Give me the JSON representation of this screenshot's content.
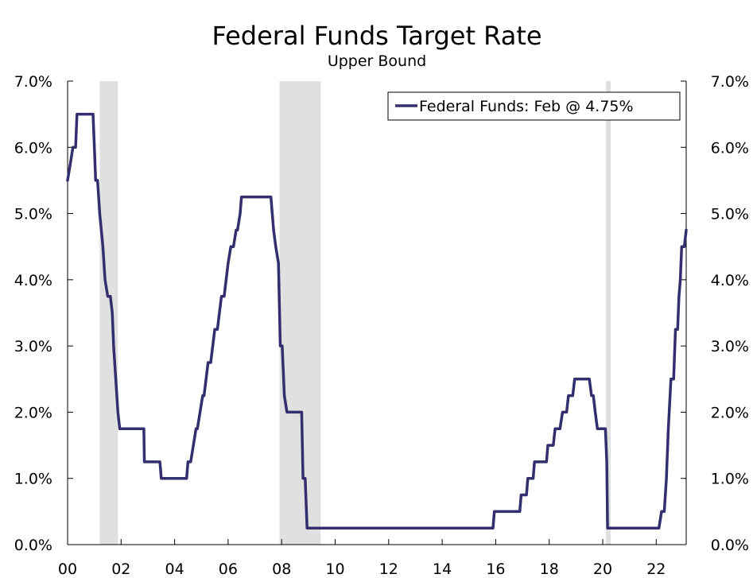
{
  "chart_data": {
    "type": "line",
    "title": "Federal Funds Target Rate",
    "subtitle": "Upper Bound",
    "xlabel": "",
    "ylabel": "",
    "xlim": [
      2000.0,
      2023.12
    ],
    "ylim": [
      0,
      7
    ],
    "y_ticks": [
      {
        "value": 0,
        "label": "0.0%"
      },
      {
        "value": 1,
        "label": "1.0%"
      },
      {
        "value": 2,
        "label": "2.0%"
      },
      {
        "value": 3,
        "label": "3.0%"
      },
      {
        "value": 4,
        "label": "4.0%"
      },
      {
        "value": 5,
        "label": "5.0%"
      },
      {
        "value": 6,
        "label": "6.0%"
      },
      {
        "value": 7,
        "label": "7.0%"
      }
    ],
    "x_ticks": [
      {
        "value": 2000,
        "label": "00"
      },
      {
        "value": 2002,
        "label": "02"
      },
      {
        "value": 2004,
        "label": "04"
      },
      {
        "value": 2006,
        "label": "06"
      },
      {
        "value": 2008,
        "label": "08"
      },
      {
        "value": 2010,
        "label": "10"
      },
      {
        "value": 2012,
        "label": "12"
      },
      {
        "value": 2014,
        "label": "14"
      },
      {
        "value": 2016,
        "label": "16"
      },
      {
        "value": 2018,
        "label": "18"
      },
      {
        "value": 2020,
        "label": "20"
      },
      {
        "value": 2022,
        "label": "22"
      }
    ],
    "recessions": [
      {
        "start": 2001.2,
        "end": 2001.88
      },
      {
        "start": 2007.92,
        "end": 2009.46
      },
      {
        "start": 2020.12,
        "end": 2020.3
      }
    ],
    "legend": {
      "label": "Federal Funds: Feb @ 4.75%",
      "position": "top-right"
    },
    "series": [
      {
        "name": "Federal Funds",
        "color": "#332e6e",
        "points": [
          [
            2000.0,
            5.5
          ],
          [
            2000.1,
            5.75
          ],
          [
            2000.2,
            6.0
          ],
          [
            2000.3,
            6.0
          ],
          [
            2000.35,
            6.5
          ],
          [
            2000.95,
            6.5
          ],
          [
            2001.0,
            6.0
          ],
          [
            2001.05,
            5.5
          ],
          [
            2001.12,
            5.5
          ],
          [
            2001.2,
            5.0
          ],
          [
            2001.32,
            4.5
          ],
          [
            2001.4,
            4.0
          ],
          [
            2001.5,
            3.75
          ],
          [
            2001.6,
            3.75
          ],
          [
            2001.67,
            3.5
          ],
          [
            2001.72,
            3.0
          ],
          [
            2001.8,
            2.5
          ],
          [
            2001.88,
            2.0
          ],
          [
            2001.95,
            1.75
          ],
          [
            2002.85,
            1.75
          ],
          [
            2002.87,
            1.25
          ],
          [
            2003.45,
            1.25
          ],
          [
            2003.5,
            1.0
          ],
          [
            2004.45,
            1.0
          ],
          [
            2004.5,
            1.25
          ],
          [
            2004.6,
            1.25
          ],
          [
            2004.7,
            1.5
          ],
          [
            2004.8,
            1.75
          ],
          [
            2004.85,
            1.75
          ],
          [
            2004.95,
            2.0
          ],
          [
            2005.05,
            2.25
          ],
          [
            2005.1,
            2.25
          ],
          [
            2005.25,
            2.75
          ],
          [
            2005.35,
            2.75
          ],
          [
            2005.5,
            3.25
          ],
          [
            2005.6,
            3.25
          ],
          [
            2005.75,
            3.75
          ],
          [
            2005.85,
            3.75
          ],
          [
            2006.0,
            4.25
          ],
          [
            2006.1,
            4.5
          ],
          [
            2006.2,
            4.5
          ],
          [
            2006.3,
            4.75
          ],
          [
            2006.35,
            4.75
          ],
          [
            2006.45,
            5.0
          ],
          [
            2006.5,
            5.25
          ],
          [
            2007.6,
            5.25
          ],
          [
            2007.7,
            4.75
          ],
          [
            2007.78,
            4.5
          ],
          [
            2007.88,
            4.25
          ],
          [
            2007.95,
            3.0
          ],
          [
            2008.02,
            3.0
          ],
          [
            2008.1,
            2.25
          ],
          [
            2008.2,
            2.0
          ],
          [
            2008.75,
            2.0
          ],
          [
            2008.8,
            1.0
          ],
          [
            2008.88,
            1.0
          ],
          [
            2008.95,
            0.25
          ],
          [
            2015.9,
            0.25
          ],
          [
            2015.95,
            0.5
          ],
          [
            2016.9,
            0.5
          ],
          [
            2016.95,
            0.75
          ],
          [
            2017.15,
            0.75
          ],
          [
            2017.2,
            1.0
          ],
          [
            2017.4,
            1.0
          ],
          [
            2017.45,
            1.25
          ],
          [
            2017.9,
            1.25
          ],
          [
            2017.95,
            1.5
          ],
          [
            2018.15,
            1.5
          ],
          [
            2018.22,
            1.75
          ],
          [
            2018.4,
            1.75
          ],
          [
            2018.5,
            2.0
          ],
          [
            2018.65,
            2.0
          ],
          [
            2018.72,
            2.25
          ],
          [
            2018.88,
            2.25
          ],
          [
            2018.95,
            2.5
          ],
          [
            2019.5,
            2.5
          ],
          [
            2019.58,
            2.25
          ],
          [
            2019.65,
            2.25
          ],
          [
            2019.72,
            2.0
          ],
          [
            2019.8,
            1.75
          ],
          [
            2020.1,
            1.75
          ],
          [
            2020.15,
            1.25
          ],
          [
            2020.18,
            0.25
          ],
          [
            2022.1,
            0.25
          ],
          [
            2022.2,
            0.5
          ],
          [
            2022.3,
            0.5
          ],
          [
            2022.38,
            1.0
          ],
          [
            2022.45,
            1.75
          ],
          [
            2022.55,
            2.5
          ],
          [
            2022.65,
            2.5
          ],
          [
            2022.72,
            3.25
          ],
          [
            2022.8,
            3.25
          ],
          [
            2022.85,
            3.75
          ],
          [
            2022.9,
            4.0
          ],
          [
            2022.95,
            4.5
          ],
          [
            2023.05,
            4.5
          ],
          [
            2023.12,
            4.75
          ]
        ]
      }
    ]
  }
}
